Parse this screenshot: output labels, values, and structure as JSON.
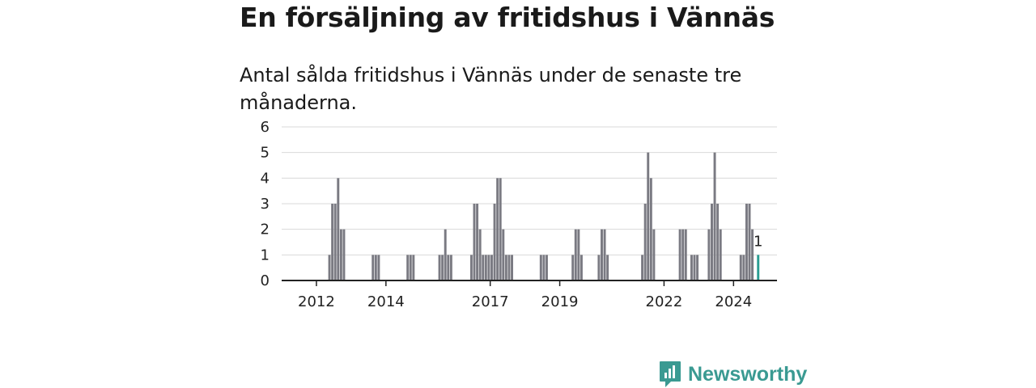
{
  "title": "En försäljning av fritidshus i Vännäs",
  "subtitle": "Antal sålda fritidshus i Vännäs under de senaste tre månaderna.",
  "brand": {
    "name": "Newsworthy",
    "icon": "newsworthy-logo-icon"
  },
  "colors": {
    "bar": "#7a7a82",
    "highlight": "#2a9d92",
    "brand": "#3a9a92",
    "grid": "#d9d9d9",
    "axis": "#222222"
  },
  "chart_data": {
    "type": "bar",
    "title": "En försäljning av fritidshus i Vännäs",
    "subtitle": "Antal sålda fritidshus i Vännäs under de senaste tre månaderna.",
    "xlabel": "",
    "ylabel": "",
    "ylim": [
      0,
      6
    ],
    "yticks": [
      0,
      1,
      2,
      3,
      4,
      5,
      6
    ],
    "xticks": [
      "2012",
      "2014",
      "2017",
      "2019",
      "2022",
      "2024"
    ],
    "grid": true,
    "x": [
      "2012-05",
      "2012-06",
      "2012-07",
      "2012-08",
      "2012-09",
      "2012-10",
      "2013-08",
      "2013-09",
      "2013-10",
      "2014-08",
      "2014-09",
      "2014-10",
      "2015-07",
      "2015-08",
      "2015-09",
      "2015-10",
      "2015-11",
      "2016-06",
      "2016-07",
      "2016-08",
      "2016-09",
      "2016-10",
      "2016-11",
      "2016-12",
      "2017-01",
      "2017-02",
      "2017-03",
      "2017-04",
      "2017-05",
      "2017-06",
      "2017-07",
      "2017-08",
      "2018-06",
      "2018-07",
      "2018-08",
      "2019-05",
      "2019-06",
      "2019-07",
      "2019-08",
      "2020-02",
      "2020-03",
      "2020-04",
      "2020-05",
      "2021-05",
      "2021-06",
      "2021-07",
      "2021-08",
      "2021-09",
      "2022-06",
      "2022-07",
      "2022-08",
      "2022-10",
      "2022-11",
      "2022-12",
      "2023-04",
      "2023-05",
      "2023-06",
      "2023-07",
      "2023-08",
      "2024-03",
      "2024-04",
      "2024-05",
      "2024-06",
      "2024-07",
      "2024-09"
    ],
    "values": [
      1,
      3,
      3,
      4,
      2,
      2,
      1,
      1,
      1,
      1,
      1,
      1,
      1,
      1,
      2,
      1,
      1,
      1,
      3,
      3,
      2,
      1,
      1,
      1,
      1,
      3,
      4,
      4,
      2,
      1,
      1,
      1,
      1,
      1,
      1,
      1,
      2,
      2,
      1,
      1,
      2,
      2,
      1,
      1,
      3,
      5,
      4,
      2,
      2,
      2,
      2,
      1,
      1,
      1,
      2,
      3,
      5,
      3,
      2,
      1,
      1,
      3,
      3,
      2,
      1
    ],
    "highlight": {
      "x": "2024-09",
      "value": 1,
      "label": "1"
    }
  }
}
